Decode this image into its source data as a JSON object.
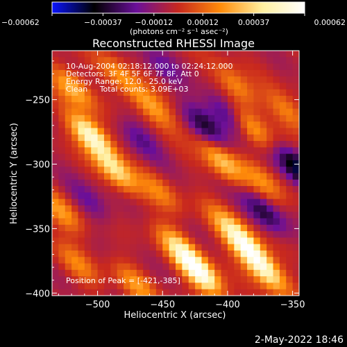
{
  "chart_data": {
    "type": "heatmap",
    "title": "Reconstructed RHESSI Image",
    "xlabel": "Heliocentric X (arcsec)",
    "ylabel": "Heliocentric Y (arcsec)",
    "xlim": [
      -535,
      -345
    ],
    "ylim": [
      -402,
      -212
    ],
    "x_ticks": [
      -500,
      -450,
      -400,
      -350
    ],
    "y_ticks": [
      -250,
      -300,
      -350,
      -400
    ],
    "x_tick_labels": [
      "−500",
      "−450",
      "−400",
      "−350"
    ],
    "y_tick_labels": [
      "−250",
      "−300",
      "−350",
      "−400"
    ],
    "colorbar": {
      "range": [
        -0.00062,
        0.00062
      ],
      "tick_values": [
        -0.00062,
        -0.00037,
        -0.00012,
        0.00012,
        0.00037,
        0.00062
      ],
      "tick_labels": [
        "−0.00062",
        "−0.00037",
        "−0.00012",
        "0.00012",
        "0.00037",
        "0.00062"
      ],
      "unit_label": "(photons cm⁻² s⁻¹ asec⁻²)",
      "colors": [
        "#0a14ff",
        "#000000",
        "#6a0f9a",
        "#c8281e",
        "#ff8c0a",
        "#fff0a0",
        "#ffffff"
      ]
    },
    "annotations": [
      "10-Aug-2004 02:18:12.000 to 02:24:12.000",
      "Detectors: 3F 4F 5F 6F 7F 8F, Att 0",
      "Energy Range: 12.0 - 25.0 keV",
      "Clean     Total counts: 3.09E+03"
    ],
    "peak": {
      "label": "Position of Peak = [-421,-385]",
      "x": -421,
      "y": -385
    },
    "footer": "2-May-2022 18:46",
    "sources": [
      {
        "x": -505,
        "y": -278,
        "intensity": 0.00058
      },
      {
        "x": -486,
        "y": -305,
        "intensity": 0.0004
      },
      {
        "x": -519,
        "y": -241,
        "intensity": 0.00035
      },
      {
        "x": -421,
        "y": -385,
        "intensity": 0.00062
      },
      {
        "x": -437,
        "y": -365,
        "intensity": 0.00036
      },
      {
        "x": -384,
        "y": -366,
        "intensity": 0.0005
      },
      {
        "x": -370,
        "y": -384,
        "intensity": 0.00042
      },
      {
        "x": -398,
        "y": -349,
        "intensity": 0.0003
      },
      {
        "x": -458,
        "y": -256,
        "intensity": 0.0003
      },
      {
        "x": -482,
        "y": -232,
        "intensity": 0.00024
      },
      {
        "x": -404,
        "y": -298,
        "intensity": 0.00036
      },
      {
        "x": -382,
        "y": -272,
        "intensity": 0.00032
      },
      {
        "x": -393,
        "y": -240,
        "intensity": 0.00026
      },
      {
        "x": -372,
        "y": -314,
        "intensity": 0.00022
      },
      {
        "x": -527,
        "y": -338,
        "intensity": 0.00027
      },
      {
        "x": -452,
        "y": -322,
        "intensity": 0.0002
      },
      {
        "x": -515,
        "y": -378,
        "intensity": 0.0002
      },
      {
        "x": -470,
        "y": -394,
        "intensity": 0.00024
      },
      {
        "x": -353,
        "y": -260,
        "intensity": 0.00024
      },
      {
        "x": -372,
        "y": -338,
        "intensity": -0.0003
      },
      {
        "x": -346,
        "y": -303,
        "intensity": -0.00045
      },
      {
        "x": -468,
        "y": -280,
        "intensity": -0.00022
      },
      {
        "x": -417,
        "y": -270,
        "intensity": -0.00028
      },
      {
        "x": -400,
        "y": -262,
        "intensity": -0.0003
      },
      {
        "x": -505,
        "y": -330,
        "intensity": -0.00018
      },
      {
        "x": -450,
        "y": -225,
        "intensity": -0.00016
      }
    ]
  }
}
